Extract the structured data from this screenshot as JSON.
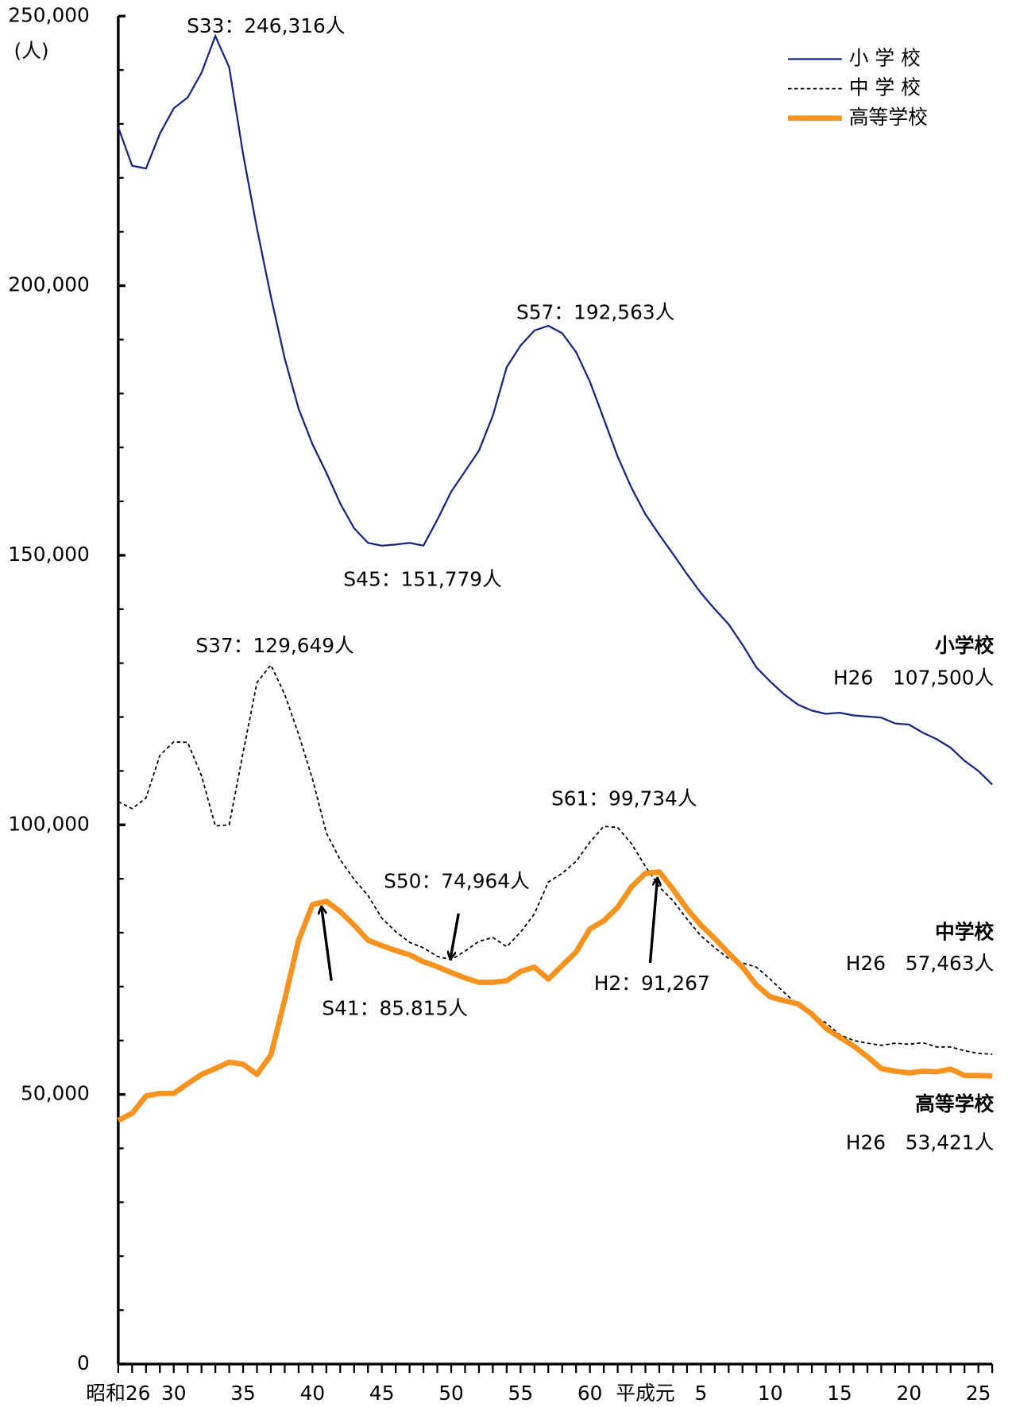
{
  "chart_data": {
    "type": "line",
    "y_label": "(人)",
    "categories": [
      "昭和26",
      null,
      null,
      null,
      "30",
      null,
      null,
      null,
      null,
      "35",
      null,
      null,
      null,
      null,
      "40",
      null,
      null,
      null,
      null,
      "45",
      null,
      null,
      null,
      null,
      "50",
      null,
      null,
      null,
      null,
      "55",
      null,
      null,
      null,
      null,
      "60",
      null,
      null,
      null,
      "平成元",
      null,
      null,
      null,
      "5",
      null,
      null,
      null,
      null,
      "10",
      null,
      null,
      null,
      null,
      "15",
      null,
      null,
      null,
      null,
      "20",
      null,
      null,
      null,
      null,
      "25",
      null
    ],
    "ylim": [
      0,
      250000
    ],
    "yticks": [
      0,
      {
        "value": 50000,
        "label": "50,000"
      },
      {
        "value": 100000,
        "label": "100,000"
      },
      {
        "value": 150000,
        "label": "150,000"
      },
      {
        "value": 200000,
        "label": "200,000"
      },
      {
        "value": 250000,
        "label": "250,000"
      }
    ],
    "grid": false,
    "legend": "upper right",
    "series": [
      {
        "name": "小 学 校",
        "color": "#1a237e",
        "style": "solid",
        "values": [
          229400,
          222250,
          221750,
          228200,
          232900,
          234900,
          239500,
          246316,
          240500,
          224400,
          210600,
          198000,
          186500,
          177200,
          170600,
          165300,
          159600,
          155000,
          152300,
          151779,
          152000,
          152300,
          151800,
          156600,
          161800,
          165600,
          169400,
          175900,
          184900,
          188900,
          191700,
          192563,
          191200,
          187700,
          182200,
          175300,
          168300,
          162500,
          157600,
          153800,
          150200,
          146500,
          143000,
          140000,
          137200,
          133400,
          129200,
          126600,
          124200,
          122300,
          121200,
          120600,
          120800,
          120300,
          120100,
          119900,
          118800,
          118600,
          117100,
          115900,
          114300,
          111900,
          110000,
          107500
        ]
      },
      {
        "name": "中 学 校",
        "color": "#000000",
        "style": "dashed",
        "values": [
          104300,
          103000,
          105000,
          112900,
          115400,
          115300,
          109100,
          99800,
          100000,
          113400,
          126400,
          129649,
          124200,
          116800,
          108500,
          98500,
          93500,
          89900,
          86900,
          82700,
          80200,
          78200,
          77200,
          75600,
          74964,
          76600,
          78400,
          79100,
          77400,
          80100,
          83500,
          89400,
          91000,
          93200,
          96800,
          99734,
          99500,
          96500,
          92300,
          88500,
          85900,
          82500,
          79400,
          77200,
          75200,
          74400,
          73600,
          71400,
          68900,
          66600,
          64800,
          63300,
          61100,
          60000,
          59500,
          59100,
          59500,
          59300,
          59600,
          58800,
          58800,
          58100,
          57600,
          57463
        ]
      },
      {
        "name": "高等学校",
        "color": "#f7931e",
        "style": "thick",
        "values": [
          45200,
          46500,
          49700,
          50200,
          50200,
          52000,
          53700,
          54800,
          56000,
          55600,
          53700,
          57300,
          67600,
          78600,
          85200,
          85815,
          83900,
          81400,
          78600,
          77600,
          76700,
          75900,
          74600,
          73700,
          72600,
          71600,
          70800,
          70800,
          71100,
          72800,
          73600,
          71400,
          73900,
          76400,
          80700,
          82200,
          84700,
          88500,
          91000,
          91267,
          88000,
          84400,
          81400,
          78900,
          76200,
          73600,
          70300,
          68100,
          67400,
          66800,
          64900,
          62300,
          60600,
          59000,
          57000,
          54800,
          54300,
          54000,
          54300,
          54200,
          54700,
          53500,
          53500,
          53421
        ]
      }
    ],
    "annotations": [
      {
        "text": "S33：246,316人"
      },
      {
        "text": "S57：192,563人"
      },
      {
        "text": "S45：151,779人"
      },
      {
        "text": "S37：129,649人"
      },
      {
        "text": "S61：99,734人"
      },
      {
        "text": "S50：74,964人"
      },
      {
        "text": "S41：85.815人"
      },
      {
        "text": "H2：91,267"
      },
      {
        "text": "小学校"
      },
      {
        "text": "H26　107,500人"
      },
      {
        "text": "中学校"
      },
      {
        "text": "H26　57,463人"
      },
      {
        "text": "高等学校"
      },
      {
        "text": "H26　53,421人"
      }
    ]
  }
}
